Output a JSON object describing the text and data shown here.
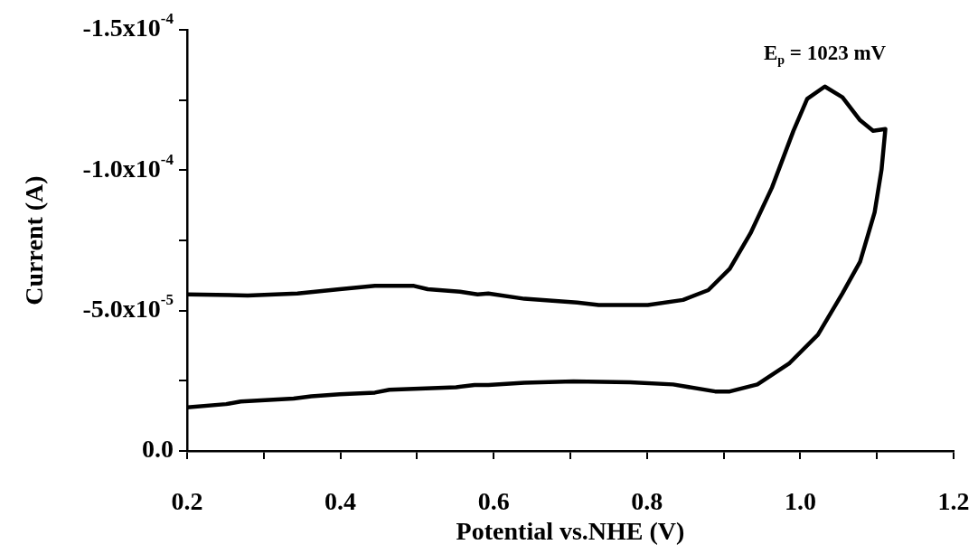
{
  "chart_data": {
    "type": "line",
    "xlabel": "Potential vs.NHE (V)",
    "ylabel": "Current (A)",
    "xlim": [
      0.2,
      1.2
    ],
    "ylim": [
      0,
      -0.00015
    ],
    "xticks": [
      {
        "value": 0.2,
        "label": "0.2"
      },
      {
        "value": 0.3,
        "label": null
      },
      {
        "value": 0.4,
        "label": "0.4"
      },
      {
        "value": 0.5,
        "label": null
      },
      {
        "value": 0.6,
        "label": "0.6"
      },
      {
        "value": 0.7,
        "label": null
      },
      {
        "value": 0.8,
        "label": "0.8"
      },
      {
        "value": 0.9,
        "label": null
      },
      {
        "value": 1.0,
        "label": "1.0"
      },
      {
        "value": 1.1,
        "label": null
      },
      {
        "value": 1.2,
        "label": "1.2"
      }
    ],
    "yticks": [
      {
        "value": 0,
        "label": "0.0"
      },
      {
        "value": -2.5e-05,
        "label": null
      },
      {
        "value": -5e-05,
        "label": "-5.0x10$^{-5}$"
      },
      {
        "value": -7.5e-05,
        "label": null
      },
      {
        "value": -0.0001,
        "label": "-1.0x10$^{-4}$"
      },
      {
        "value": -0.000125,
        "label": null
      },
      {
        "value": -0.00015,
        "label": "-1.5x10$^{-4}$"
      }
    ],
    "marker": "none",
    "line_style": "solid",
    "annotations": [
      {
        "text": "E$_{p}$ = 1023 mV",
        "x": 1.032,
        "y": -0.0001298
      }
    ],
    "series": [
      {
        "color": "#000000",
        "x": [
          0.2,
          0.279,
          0.344,
          0.399,
          0.445,
          0.496,
          0.514,
          0.556,
          0.579,
          0.593,
          0.64,
          0.709,
          0.737,
          0.801,
          0.847,
          0.88,
          0.908,
          0.935,
          0.963,
          0.991,
          1.009,
          1.032,
          1.055,
          1.078,
          1.095,
          1.111,
          1.106,
          1.097,
          1.078,
          1.055,
          1.023,
          0.986,
          0.944,
          0.908,
          0.889,
          0.834,
          0.778,
          0.704,
          0.64,
          0.593,
          0.575,
          0.551,
          0.464,
          0.445,
          0.399,
          0.362,
          0.339,
          0.27,
          0.251,
          0.2
        ],
        "values": [
          -5.58e-05,
          -5.54e-05,
          -5.61e-05,
          -5.76e-05,
          -5.88e-05,
          -5.88e-05,
          -5.76e-05,
          -5.67e-05,
          -5.58e-05,
          -5.61e-05,
          -5.42e-05,
          -5.29e-05,
          -5.2e-05,
          -5.2e-05,
          -5.38e-05,
          -5.73e-05,
          -6.49e-05,
          -7.75e-05,
          -9.38e-05,
          -0.000114,
          -0.0001254,
          -0.0001298,
          -0.000126,
          -0.0001178,
          -0.000114,
          -0.0001147,
          -0.0001002,
          -8.5e-05,
          -6.74e-05,
          -5.61e-05,
          -4.14e-05,
          -3.13e-05,
          -2.37e-05,
          -2.12e-05,
          -2.12e-05,
          -2.37e-05,
          -2.45e-05,
          -2.48e-05,
          -2.43e-05,
          -2.35e-05,
          -2.35e-05,
          -2.27e-05,
          -2.18e-05,
          -2.08e-05,
          -2.02e-05,
          -1.95e-05,
          -1.87e-05,
          -1.76e-05,
          -1.67e-05,
          -1.55e-05
        ]
      }
    ]
  }
}
